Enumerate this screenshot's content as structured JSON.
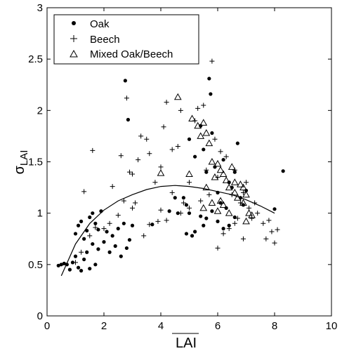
{
  "chart_data": {
    "type": "scatter",
    "xlabel": "LAI",
    "ylabel_main": "σ",
    "ylabel_sub": "LAI",
    "xlim": [
      0,
      10
    ],
    "ylim": [
      0,
      3
    ],
    "xticks": [
      0,
      2,
      4,
      6,
      8,
      10
    ],
    "yticks": [
      0,
      0.5,
      1,
      1.5,
      2,
      2.5,
      3
    ],
    "ytick_labels": [
      "0",
      "0.5",
      "1",
      "1.5",
      "2",
      "2.5",
      "3"
    ],
    "legend_position": "top-left",
    "series": [
      {
        "name": "Oak",
        "marker": "dot",
        "points": [
          [
            0.4,
            0.49
          ],
          [
            0.5,
            0.5
          ],
          [
            0.6,
            0.51
          ],
          [
            0.7,
            0.5
          ],
          [
            0.8,
            0.45
          ],
          [
            0.9,
            0.52
          ],
          [
            1.0,
            0.58
          ],
          [
            1.1,
            0.47
          ],
          [
            1.2,
            0.44
          ],
          [
            1.3,
            0.55
          ],
          [
            1.4,
            0.62
          ],
          [
            1.5,
            0.46
          ],
          [
            1.6,
            0.7
          ],
          [
            1.7,
            0.5
          ],
          [
            1.8,
            0.65
          ],
          [
            2.0,
            0.72
          ],
          [
            2.2,
            0.62
          ],
          [
            2.4,
            0.68
          ],
          [
            2.6,
            0.58
          ],
          [
            2.8,
            0.66
          ],
          [
            1.0,
            0.8
          ],
          [
            1.1,
            0.88
          ],
          [
            1.2,
            0.92
          ],
          [
            1.3,
            0.75
          ],
          [
            1.4,
            0.83
          ],
          [
            1.5,
            0.96
          ],
          [
            1.6,
            1.0
          ],
          [
            1.7,
            0.9
          ],
          [
            1.8,
            0.84
          ],
          [
            1.9,
            1.02
          ],
          [
            2.1,
            0.82
          ],
          [
            2.3,
            0.78
          ],
          [
            2.5,
            0.85
          ],
          [
            2.7,
            0.9
          ],
          [
            2.9,
            0.74
          ],
          [
            3.0,
            0.88
          ],
          [
            2.75,
            2.29
          ],
          [
            2.85,
            1.91
          ],
          [
            3.7,
            0.89
          ],
          [
            4.3,
            1.02
          ],
          [
            4.6,
            1.0
          ],
          [
            4.8,
            1.15
          ],
          [
            4.9,
            1.08
          ],
          [
            5.0,
            1.72
          ],
          [
            5.2,
            1.55
          ],
          [
            5.4,
            1.85
          ],
          [
            5.5,
            1.62
          ],
          [
            5.6,
            1.4
          ],
          [
            5.7,
            2.31
          ],
          [
            5.75,
            2.16
          ],
          [
            5.8,
            1.78
          ],
          [
            5.9,
            1.45
          ],
          [
            6.0,
            1.2
          ],
          [
            6.1,
            1.1
          ],
          [
            6.2,
            1.52
          ],
          [
            6.3,
            1.05
          ],
          [
            6.4,
            1.3
          ],
          [
            6.5,
            1.25
          ],
          [
            6.6,
            1.4
          ],
          [
            6.7,
            1.68
          ],
          [
            6.8,
            1.15
          ],
          [
            6.9,
            1.08
          ],
          [
            7.0,
            1.22
          ],
          [
            5.0,
            1.0
          ],
          [
            5.2,
            0.82
          ],
          [
            5.4,
            0.97
          ],
          [
            5.5,
            0.88
          ],
          [
            5.6,
            0.95
          ],
          [
            5.8,
            1.02
          ],
          [
            6.0,
            0.92
          ],
          [
            6.2,
            0.85
          ],
          [
            6.4,
            0.88
          ],
          [
            6.6,
            0.96
          ],
          [
            4.5,
            1.15
          ],
          [
            4.9,
            0.8
          ],
          [
            5.1,
            0.78
          ],
          [
            8.0,
            1.04
          ],
          [
            8.3,
            1.41
          ]
        ]
      },
      {
        "name": "Beech",
        "marker": "plus",
        "points": [
          [
            1.3,
            1.21
          ],
          [
            1.6,
            1.61
          ],
          [
            2.3,
            1.26
          ],
          [
            2.6,
            1.56
          ],
          [
            2.8,
            2.12
          ],
          [
            2.9,
            1.4
          ],
          [
            3.1,
            1.1
          ],
          [
            3.2,
            1.52
          ],
          [
            3.3,
            1.75
          ],
          [
            3.5,
            1.72
          ],
          [
            3.6,
            1.58
          ],
          [
            3.8,
            1.3
          ],
          [
            4.0,
            1.45
          ],
          [
            4.1,
            1.84
          ],
          [
            4.2,
            2.08
          ],
          [
            4.4,
            1.62
          ],
          [
            4.6,
            1.65
          ],
          [
            4.7,
            2.0
          ],
          [
            4.8,
            1.1
          ],
          [
            5.0,
            1.3
          ],
          [
            5.2,
            1.9
          ],
          [
            5.3,
            2.02
          ],
          [
            5.5,
            2.05
          ],
          [
            5.6,
            1.42
          ],
          [
            5.8,
            2.48
          ],
          [
            5.9,
            1.72
          ],
          [
            6.0,
            1.35
          ],
          [
            6.1,
            1.6
          ],
          [
            6.3,
            1.55
          ],
          [
            6.5,
            1.18
          ],
          [
            6.6,
            1.42
          ],
          [
            6.7,
            0.95
          ],
          [
            6.8,
            1.1
          ],
          [
            6.9,
            1.2
          ],
          [
            7.0,
            1.3
          ],
          [
            7.1,
            1.05
          ],
          [
            7.2,
            0.95
          ],
          [
            7.3,
            1.1
          ],
          [
            7.4,
            1.0
          ],
          [
            7.6,
            0.9
          ],
          [
            7.7,
            0.75
          ],
          [
            7.8,
            0.93
          ],
          [
            7.9,
            0.82
          ],
          [
            8.0,
            0.71
          ],
          [
            8.1,
            0.84
          ],
          [
            6.0,
            0.66
          ],
          [
            6.2,
            0.8
          ],
          [
            6.4,
            0.85
          ],
          [
            6.6,
            0.9
          ],
          [
            3.4,
            0.78
          ],
          [
            3.6,
            0.89
          ],
          [
            3.9,
            0.92
          ],
          [
            4.2,
            0.93
          ],
          [
            4.7,
            1.0
          ],
          [
            1.0,
            0.52
          ],
          [
            1.2,
            0.62
          ],
          [
            1.5,
            0.78
          ],
          [
            1.7,
            0.86
          ],
          [
            2.0,
            0.85
          ],
          [
            2.2,
            0.9
          ],
          [
            2.5,
            0.98
          ],
          [
            2.7,
            1.12
          ],
          [
            3.0,
            1.05
          ],
          [
            4.0,
            1.03
          ],
          [
            5.0,
            1.05
          ],
          [
            5.4,
            1.12
          ],
          [
            5.7,
            1.18
          ],
          [
            3.0,
            1.38
          ],
          [
            4.4,
            1.2
          ],
          [
            6.9,
            0.75
          ]
        ]
      },
      {
        "name": "Mixed Oak/Beech",
        "marker": "triangle",
        "points": [
          [
            4.0,
            1.39
          ],
          [
            4.6,
            2.13
          ],
          [
            5.0,
            1.38
          ],
          [
            5.1,
            1.92
          ],
          [
            5.3,
            1.85
          ],
          [
            5.4,
            1.75
          ],
          [
            5.5,
            1.88
          ],
          [
            5.6,
            1.78
          ],
          [
            5.7,
            1.68
          ],
          [
            5.8,
            1.5
          ],
          [
            5.9,
            1.35
          ],
          [
            6.0,
            1.48
          ],
          [
            6.1,
            1.42
          ],
          [
            6.2,
            1.38
          ],
          [
            6.3,
            1.32
          ],
          [
            6.4,
            1.25
          ],
          [
            6.5,
            1.45
          ],
          [
            6.6,
            1.2
          ],
          [
            6.7,
            1.15
          ],
          [
            6.8,
            1.28
          ],
          [
            6.9,
            1.1
          ],
          [
            7.0,
            1.18
          ],
          [
            7.1,
            1.0
          ],
          [
            7.2,
            0.98
          ],
          [
            5.5,
            1.05
          ],
          [
            5.8,
            1.1
          ],
          [
            6.0,
            1.02
          ],
          [
            6.2,
            1.08
          ],
          [
            6.4,
            1.0
          ],
          [
            6.6,
            1.3
          ],
          [
            6.9,
            1.25
          ],
          [
            7.0,
            0.92
          ],
          [
            5.6,
            1.25
          ],
          [
            6.1,
            1.12
          ]
        ]
      },
      {
        "name": "",
        "marker": "line",
        "points": [
          [
            0.5,
            0.39
          ],
          [
            1.0,
            0.7
          ],
          [
            1.5,
            0.9
          ],
          [
            2.0,
            1.03
          ],
          [
            2.5,
            1.12
          ],
          [
            3.0,
            1.18
          ],
          [
            3.5,
            1.23
          ],
          [
            4.0,
            1.26
          ],
          [
            4.5,
            1.27
          ],
          [
            5.0,
            1.26
          ],
          [
            5.5,
            1.24
          ],
          [
            6.0,
            1.21
          ],
          [
            6.5,
            1.18
          ],
          [
            7.0,
            1.13
          ],
          [
            7.5,
            1.07
          ],
          [
            8.0,
            1.0
          ]
        ]
      }
    ]
  }
}
